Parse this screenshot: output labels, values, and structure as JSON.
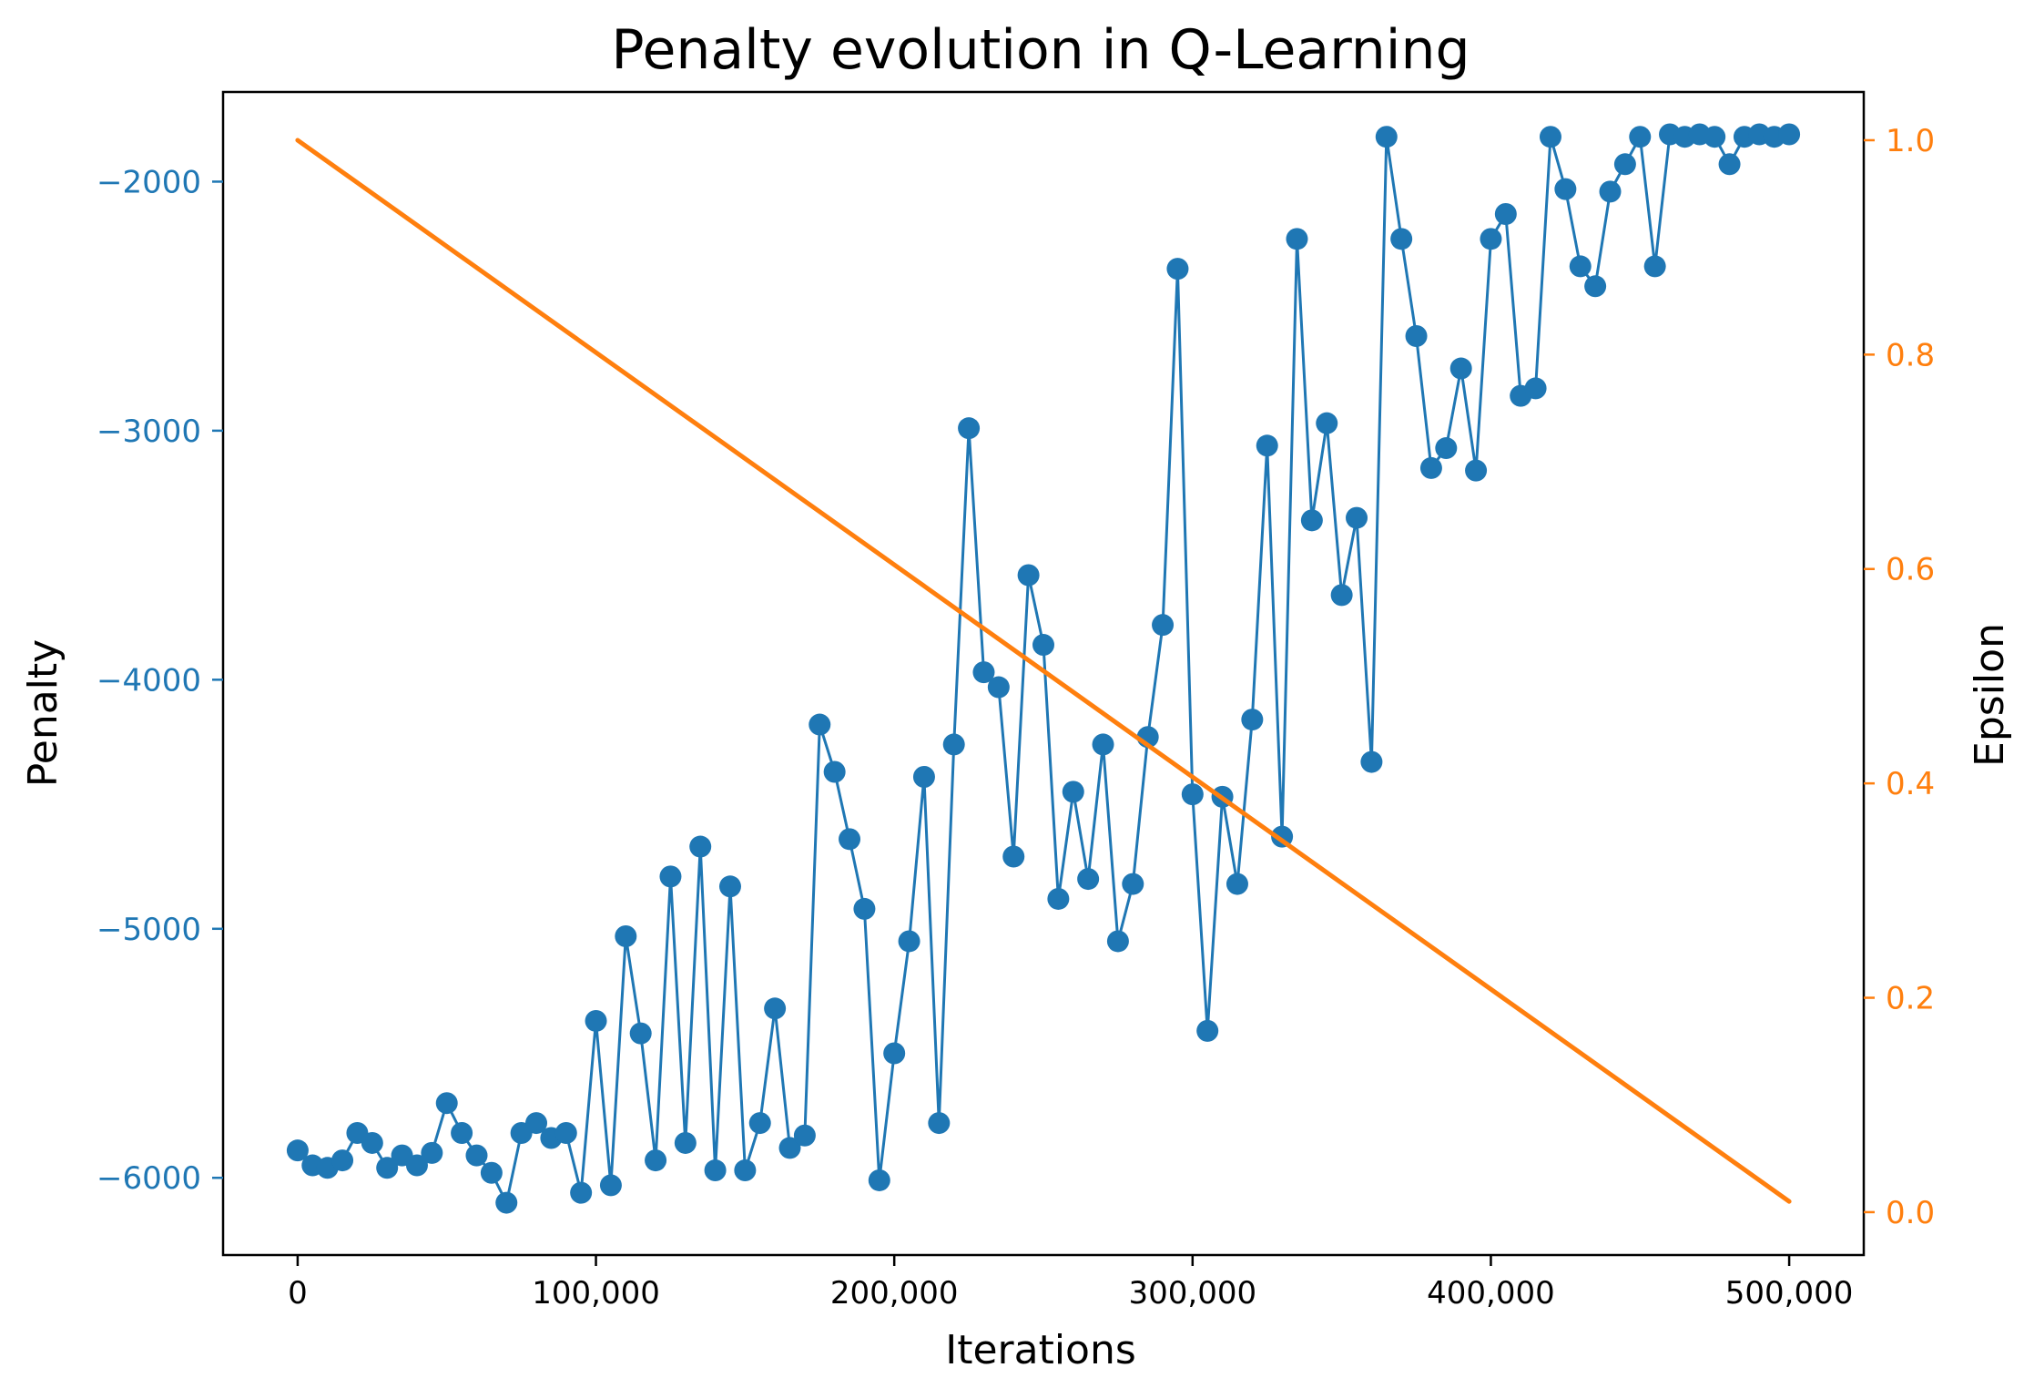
{
  "chart_data": {
    "type": "line",
    "title": "Penalty evolution in Q-Learning",
    "xlabel": "Iterations",
    "ylabel": "Penalty",
    "y2label": "Epsilon",
    "xlim": [
      -25000,
      525000
    ],
    "ylim": [
      -6310,
      -1640
    ],
    "y2lim": [
      -0.04,
      1.045
    ],
    "x_ticks": [
      0,
      100000,
      200000,
      300000,
      400000,
      500000
    ],
    "x_tick_labels": [
      "0",
      "100,000",
      "200,000",
      "300,000",
      "400,000",
      "500,000"
    ],
    "y_ticks": [
      -2000,
      -3000,
      -4000,
      -5000,
      -6000
    ],
    "y_tick_labels": [
      "−2000",
      "−3000",
      "−4000",
      "−5000",
      "−6000"
    ],
    "y2_ticks": [
      0.0,
      0.2,
      0.4,
      0.6,
      0.8,
      1.0
    ],
    "y2_tick_labels": [
      "0.0",
      "0.2",
      "0.4",
      "0.6",
      "0.8",
      "1.0"
    ],
    "grid": false,
    "colors": {
      "penalty": "#1f77b4",
      "epsilon": "#ff7f0e",
      "axes": "#000000"
    },
    "series": [
      {
        "name": "Penalty",
        "axis": "left",
        "marker": "circle",
        "x": [
          0,
          5000,
          10000,
          15000,
          20000,
          25000,
          30000,
          35000,
          40000,
          45000,
          50000,
          55000,
          60000,
          65000,
          70000,
          75000,
          80000,
          85000,
          90000,
          95000,
          100000,
          105000,
          110000,
          115000,
          120000,
          125000,
          130000,
          135000,
          140000,
          145000,
          150000,
          155000,
          160000,
          165000,
          170000,
          175000,
          180000,
          185000,
          190000,
          195000,
          200000,
          205000,
          210000,
          215000,
          220000,
          225000,
          230000,
          235000,
          240000,
          245000,
          250000,
          255000,
          260000,
          265000,
          270000,
          275000,
          280000,
          285000,
          290000,
          295000,
          300000,
          305000,
          310000,
          315000,
          320000,
          325000,
          330000,
          335000,
          340000,
          345000,
          350000,
          355000,
          360000,
          365000,
          370000,
          375000,
          380000,
          385000,
          390000,
          395000,
          400000,
          405000,
          410000,
          415000,
          420000,
          425000,
          430000,
          435000,
          440000,
          445000,
          450000,
          455000,
          460000,
          465000,
          470000,
          475000,
          480000,
          485000,
          490000,
          495000,
          500000
        ],
        "values": [
          -5890,
          -5950,
          -5960,
          -5930,
          -5820,
          -5860,
          -5960,
          -5910,
          -5950,
          -5900,
          -5700,
          -5820,
          -5910,
          -5980,
          -6100,
          -5820,
          -5780,
          -5840,
          -5820,
          -6060,
          -5370,
          -6030,
          -5030,
          -5420,
          -5930,
          -4790,
          -5860,
          -4670,
          -5970,
          -4830,
          -5970,
          -5780,
          -5320,
          -5880,
          -5830,
          -4180,
          -4370,
          -4640,
          -4920,
          -6010,
          -5500,
          -5050,
          -4390,
          -5780,
          -4260,
          -2990,
          -3970,
          -4030,
          -4710,
          -3580,
          -3860,
          -4880,
          -4450,
          -4800,
          -4260,
          -5050,
          -4820,
          -4230,
          -3780,
          -2350,
          -4460,
          -5410,
          -4470,
          -4820,
          -4160,
          -3060,
          -4630,
          -2230,
          -3360,
          -2970,
          -3660,
          -3350,
          -4330,
          -1820,
          -2230,
          -2620,
          -3150,
          -3070,
          -2750,
          -3160,
          -2230,
          -2130,
          -2860,
          -2830,
          -1820,
          -2030,
          -2340,
          -2420,
          -2040,
          -1930,
          -1820,
          -2340,
          -1810,
          -1820,
          -1810,
          -1820,
          -1930,
          -1820,
          -1810,
          -1820,
          -1810
        ]
      },
      {
        "name": "Epsilon",
        "axis": "right",
        "marker": "none",
        "x": [
          0,
          500000
        ],
        "values": [
          1.0,
          0.01
        ]
      }
    ]
  }
}
